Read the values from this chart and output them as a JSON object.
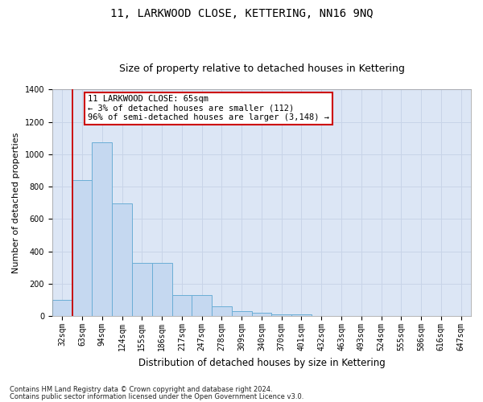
{
  "title": "11, LARKWOOD CLOSE, KETTERING, NN16 9NQ",
  "subtitle": "Size of property relative to detached houses in Kettering",
  "xlabel": "Distribution of detached houses by size in Kettering",
  "ylabel": "Number of detached properties",
  "categories": [
    "32sqm",
    "63sqm",
    "94sqm",
    "124sqm",
    "155sqm",
    "186sqm",
    "217sqm",
    "247sqm",
    "278sqm",
    "309sqm",
    "340sqm",
    "370sqm",
    "401sqm",
    "432sqm",
    "463sqm",
    "493sqm",
    "524sqm",
    "555sqm",
    "586sqm",
    "616sqm",
    "647sqm"
  ],
  "values": [
    100,
    840,
    1075,
    695,
    330,
    330,
    130,
    130,
    60,
    30,
    20,
    10,
    10,
    0,
    0,
    0,
    0,
    0,
    0,
    0,
    0
  ],
  "bar_color": "#c5d8f0",
  "bar_edge_color": "#6baed6",
  "vline_x_index": 1,
  "vline_color": "#cc0000",
  "annotation_line1": "11 LARKWOOD CLOSE: 65sqm",
  "annotation_line2": "← 3% of detached houses are smaller (112)",
  "annotation_line3": "96% of semi-detached houses are larger (3,148) →",
  "annotation_box_color": "#ffffff",
  "annotation_box_edge": "#cc0000",
  "ylim": [
    0,
    1400
  ],
  "yticks": [
    0,
    200,
    400,
    600,
    800,
    1000,
    1200,
    1400
  ],
  "grid_color": "#c8d4e8",
  "background_color": "#dce6f5",
  "footnote1": "Contains HM Land Registry data © Crown copyright and database right 2024.",
  "footnote2": "Contains public sector information licensed under the Open Government Licence v3.0.",
  "title_fontsize": 10,
  "subtitle_fontsize": 9,
  "tick_fontsize": 7,
  "ylabel_fontsize": 8,
  "xlabel_fontsize": 8.5,
  "annotation_fontsize": 7.5,
  "footnote_fontsize": 6
}
